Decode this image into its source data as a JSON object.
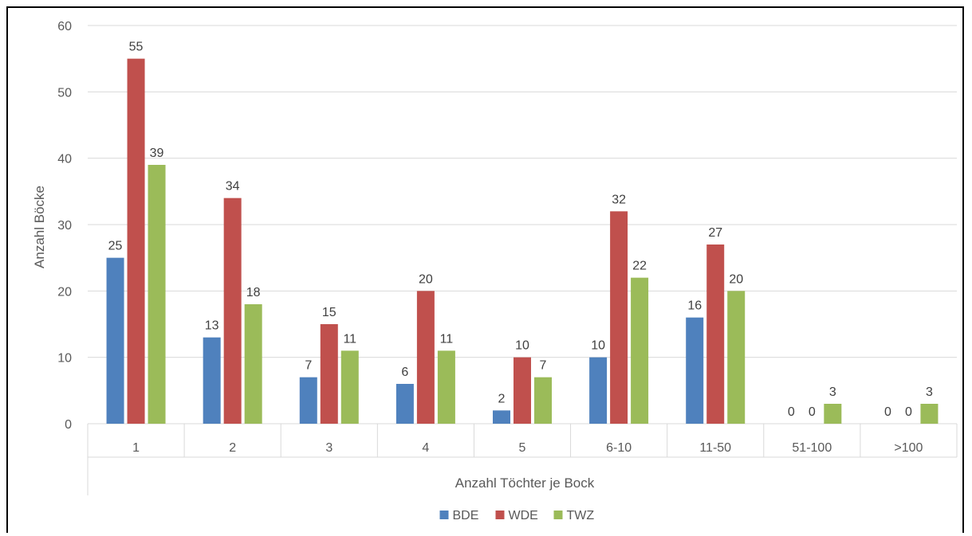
{
  "chart_data": {
    "type": "bar",
    "title": "",
    "xlabel": "Anzahl Töchter je Bock",
    "ylabel": "Anzahl Böcke",
    "ylim": [
      0,
      60
    ],
    "yticks": [
      0,
      10,
      20,
      30,
      40,
      50,
      60
    ],
    "grid": true,
    "legend_position": "bottom",
    "categories": [
      "1",
      "2",
      "3",
      "4",
      "5",
      "6-10",
      "11-50",
      "51-100",
      ">100"
    ],
    "series": [
      {
        "name": "BDE",
        "color": "#4F81BD",
        "values": [
          25,
          13,
          7,
          6,
          2,
          10,
          16,
          0,
          0
        ]
      },
      {
        "name": "WDE",
        "color": "#C0504D",
        "values": [
          55,
          34,
          15,
          20,
          10,
          32,
          27,
          0,
          0
        ]
      },
      {
        "name": "TWZ",
        "color": "#9BBB59",
        "values": [
          39,
          18,
          11,
          11,
          7,
          22,
          20,
          3,
          3
        ]
      }
    ]
  }
}
